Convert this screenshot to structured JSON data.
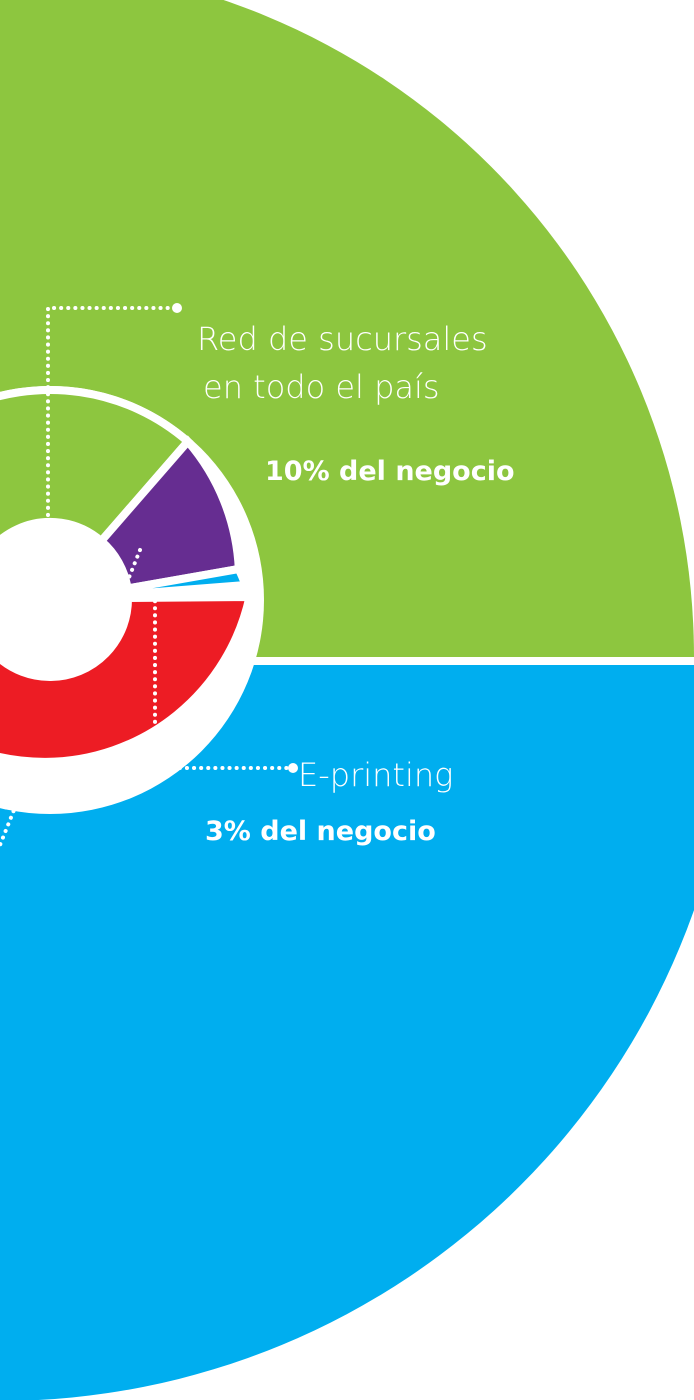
{
  "annotations": [
    {
      "lines": [
        "Red de sucursales",
        "en todo el país"
      ],
      "share": "10% del negocio"
    },
    {
      "lines": [
        "E-printing"
      ],
      "share": "3% del negocio"
    }
  ]
}
